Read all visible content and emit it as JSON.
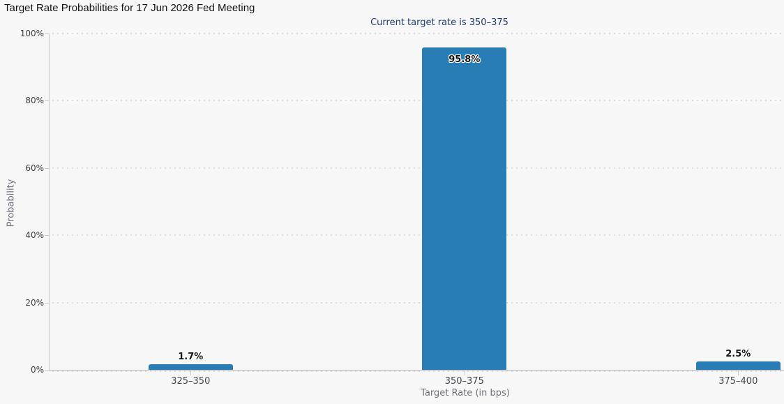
{
  "chart_data": {
    "type": "bar",
    "title": "Target Rate Probabilities for 17 Jun 2026 Fed Meeting",
    "subtitle": "Current target rate is 350–375",
    "categories": [
      "325–350",
      "350–375",
      "375–400"
    ],
    "values": [
      1.7,
      95.8,
      2.5
    ],
    "value_labels": [
      "1.7%",
      "95.8%",
      "2.5%"
    ],
    "xlabel": "Target Rate (in bps)",
    "ylabel": "Probability",
    "ylim": [
      0,
      100
    ],
    "yticks": [
      0,
      20,
      40,
      60,
      80,
      100
    ],
    "ytick_labels": [
      "0%",
      "20%",
      "40%",
      "60%",
      "80%",
      "100%"
    ],
    "grid": "horizontal-dotted",
    "legend": "none"
  },
  "colors": {
    "background": "#f7f7f8",
    "bar": "#297db5",
    "title": "#141414",
    "subtitle": "#1d3c6e",
    "tick_label": "#3d3d44",
    "axis_title": "#70707a",
    "axis_line": "#b4b4ba",
    "gridline": "#dcdcdc"
  }
}
